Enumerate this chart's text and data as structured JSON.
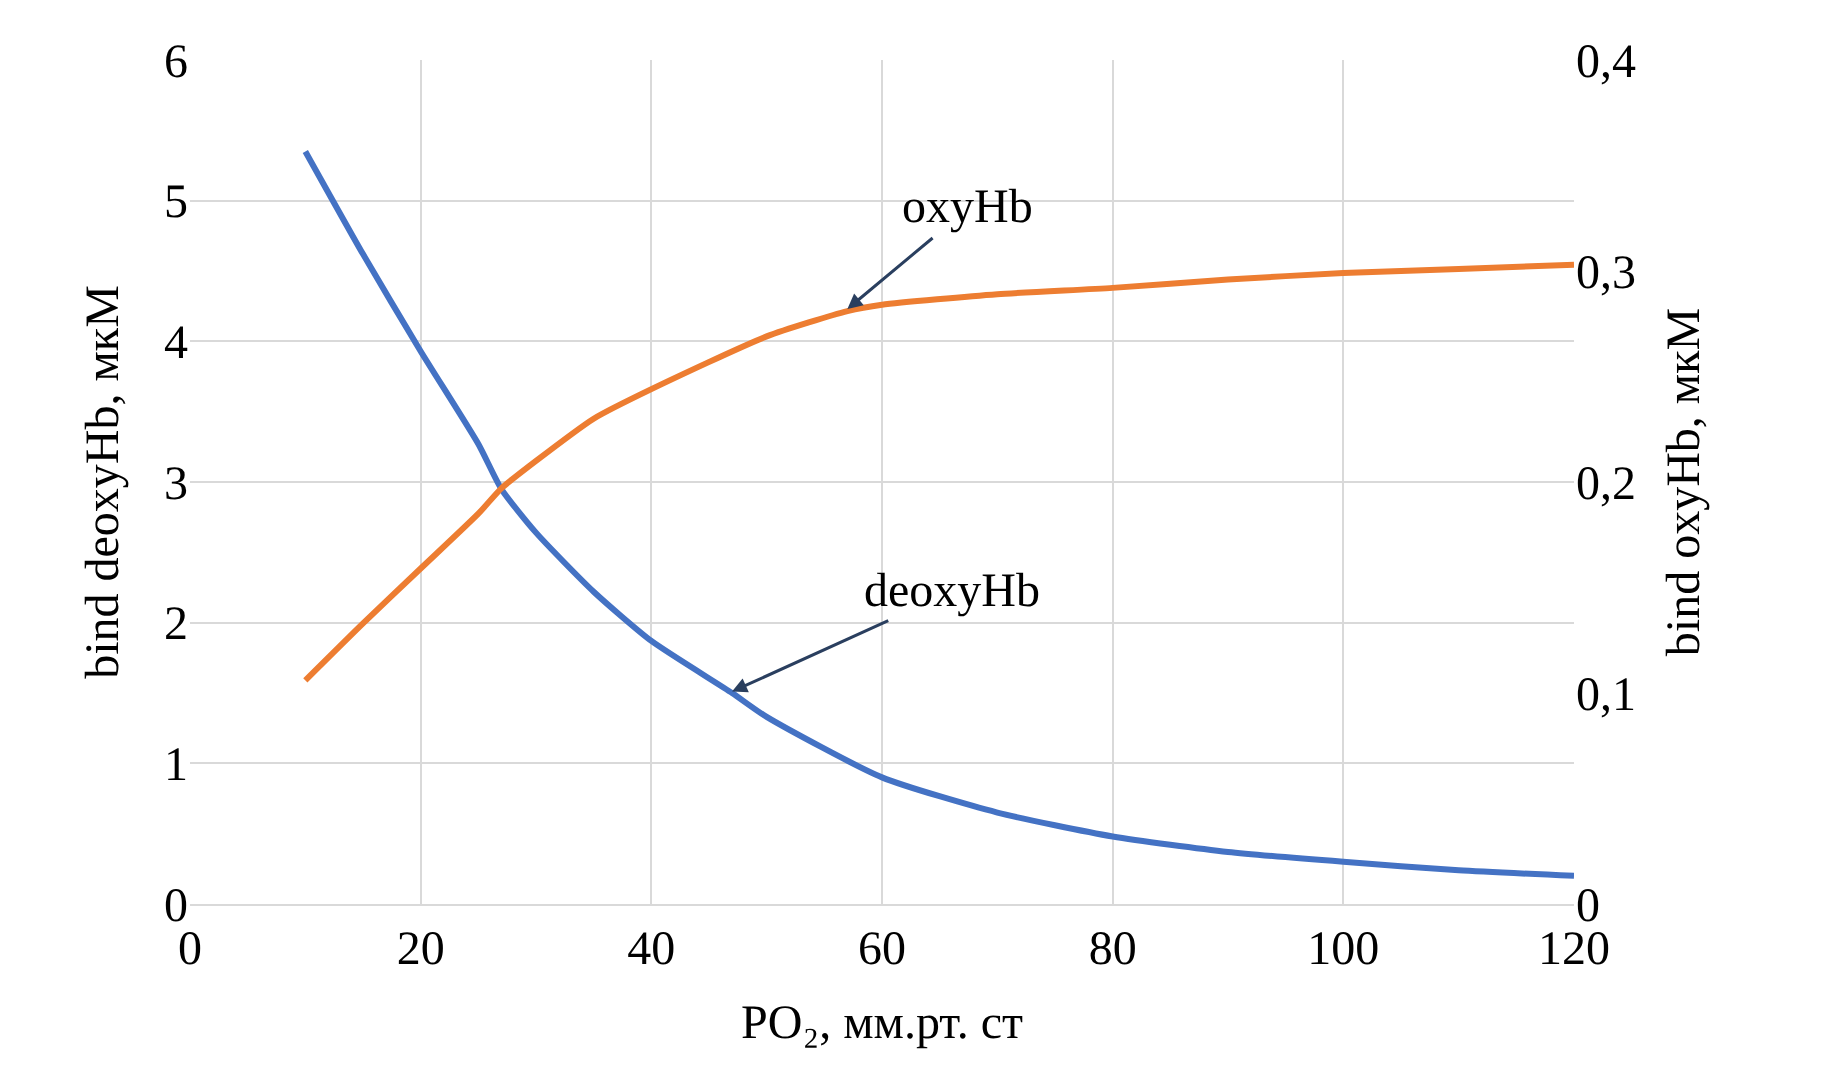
{
  "chart_data": {
    "type": "line",
    "xlabel": "PO₂, мм.рт. ст",
    "ylabel": "bind deoxyHb, мкМ",
    "y2label": "bind oxyHb, мкМ",
    "xlim": [
      0,
      120
    ],
    "xticks": [
      0,
      20,
      40,
      60,
      80,
      100,
      120
    ],
    "ylim": [
      0,
      6
    ],
    "yticks": [
      0,
      1,
      2,
      3,
      4,
      5,
      6
    ],
    "y2lim": [
      0,
      0.4
    ],
    "y2ticks": [
      0,
      {
        "value": 0.1,
        "label": "0,1"
      },
      {
        "value": 0.2,
        "label": "0,2"
      },
      {
        "value": 0.3,
        "label": "0,3"
      },
      {
        "value": 0.4,
        "label": "0,4"
      }
    ],
    "grid": true,
    "legend": false,
    "marker": "none",
    "line_style": "solid",
    "series": [
      {
        "color": "#4472c4",
        "x": [
          10,
          15,
          20,
          25,
          27,
          30,
          35,
          40,
          47,
          50,
          60,
          70,
          80,
          90,
          100,
          110,
          120
        ],
        "values": [
          5.35,
          4.62,
          3.93,
          3.27,
          2.95,
          2.64,
          2.22,
          1.87,
          1.5,
          1.33,
          0.9,
          0.65,
          0.48,
          0.37,
          0.3,
          0.24,
          0.2
        ]
      },
      {
        "color": "#ed7d31",
        "axis": "y2",
        "x": [
          10,
          15,
          20,
          25,
          27,
          30,
          35,
          40,
          50,
          57,
          60,
          70,
          80,
          90,
          100,
          110,
          120
        ],
        "values": [
          0.106,
          0.133,
          0.159,
          0.185,
          0.197,
          0.21,
          0.23,
          0.244,
          0.269,
          0.281,
          0.284,
          0.289,
          0.292,
          0.296,
          0.299,
          0.301,
          0.303
        ]
      }
    ],
    "annotations": [
      {
        "text": "oxyHb",
        "x": 57,
        "y": 4.23
      },
      {
        "text": "deoxyHb",
        "x": 47,
        "y": 1.51
      }
    ]
  }
}
